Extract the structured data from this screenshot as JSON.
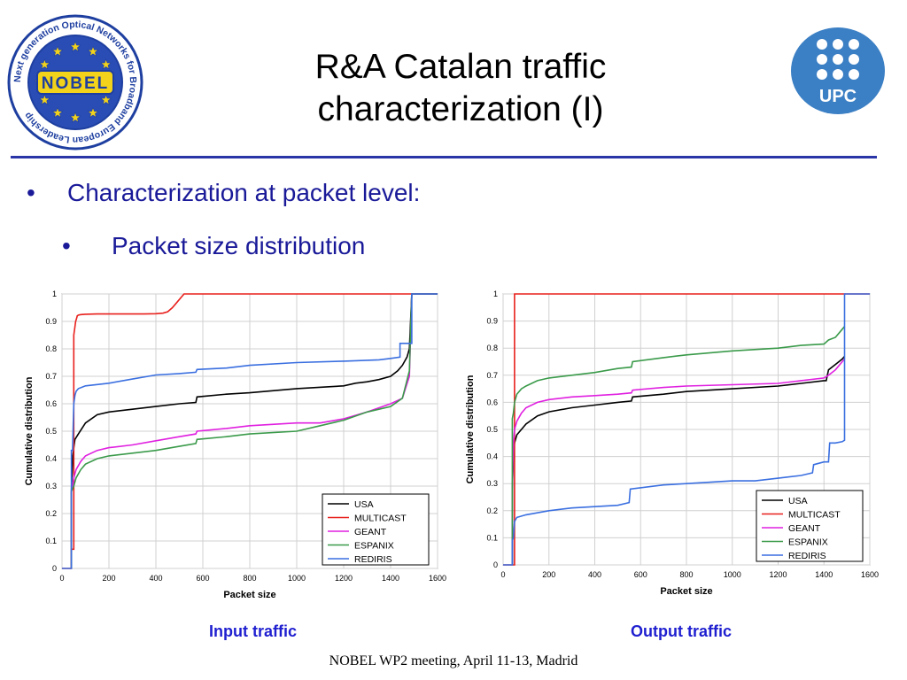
{
  "slide": {
    "title_line1": "R&A Catalan traffic",
    "title_line2": "characterization (I)",
    "bullet1": "Characterization at packet level:",
    "bullet2": "Packet size distribution",
    "bullet_symbol": "•",
    "caption_left": "Input traffic",
    "caption_right": "Output traffic",
    "footer": "NOBEL WP2 meeting, April 11-13, Madrid"
  },
  "logos": {
    "left_ring_text": "Next generation Optical Networks for Broadband European Leadership",
    "left_center_text": "NOBEL",
    "right_text": "UPC"
  },
  "colors": {
    "rule": "#2a35a8",
    "bullet_text": "#1a1a99",
    "caption": "#1f1fd0",
    "upc_blue": "#3b7fc4",
    "nobel_ring": "#1e3fa0",
    "nobel_star": "#f2d21b"
  },
  "chart_data": [
    {
      "type": "line",
      "xlabel": "Packet size",
      "ylabel": "Cumulative distribution",
      "xlim": [
        0,
        1600
      ],
      "ylim": [
        0,
        1
      ],
      "xticks": [
        "0",
        "200",
        "400",
        "600",
        "800",
        "1000",
        "1200",
        "1400",
        "1600"
      ],
      "yticks": [
        "0",
        "0.1",
        "0.2",
        "0.3",
        "0.4",
        "0.5",
        "0.6",
        "0.7",
        "0.8",
        "0.9",
        "1"
      ],
      "grid": true,
      "legend": "bottom-right",
      "series": [
        {
          "name": "USA",
          "color": "#000000",
          "x": [
            40,
            40,
            45,
            50,
            55,
            70,
            100,
            150,
            200,
            300,
            400,
            500,
            570,
            575,
            700,
            800,
            1000,
            1200,
            1250,
            1300,
            1350,
            1400,
            1430,
            1450,
            1470,
            1480,
            1490,
            1500,
            1600
          ],
          "y": [
            0,
            0.28,
            0.4,
            0.44,
            0.47,
            0.49,
            0.53,
            0.56,
            0.57,
            0.58,
            0.59,
            0.6,
            0.605,
            0.625,
            0.635,
            0.64,
            0.655,
            0.665,
            0.675,
            0.68,
            0.688,
            0.7,
            0.72,
            0.74,
            0.77,
            0.8,
            1.0,
            1.0,
            1.0
          ]
        },
        {
          "name": "MULTICAST",
          "color": "#e8201c",
          "x": [
            0,
            40,
            40,
            50,
            50,
            55,
            58,
            62,
            65,
            70,
            80,
            100,
            150,
            200,
            250,
            300,
            350,
            400,
            430,
            450,
            470,
            490,
            510,
            520,
            530,
            540,
            600,
            1000,
            1600
          ],
          "y": [
            0,
            0,
            0.07,
            0.07,
            0.85,
            0.88,
            0.9,
            0.91,
            0.92,
            0.923,
            0.925,
            0.926,
            0.927,
            0.927,
            0.927,
            0.927,
            0.927,
            0.928,
            0.93,
            0.935,
            0.95,
            0.97,
            0.99,
            1.0,
            1.0,
            1.0,
            1.0,
            1.0,
            1.0
          ]
        },
        {
          "name": "GEANT",
          "color": "#e020e0",
          "x": [
            40,
            40,
            45,
            50,
            60,
            80,
            100,
            150,
            200,
            300,
            400,
            500,
            570,
            575,
            700,
            800,
            1000,
            1100,
            1200,
            1300,
            1400,
            1450,
            1480,
            1490,
            1600
          ],
          "y": [
            0,
            0.28,
            0.3,
            0.33,
            0.36,
            0.39,
            0.41,
            0.43,
            0.44,
            0.45,
            0.465,
            0.48,
            0.49,
            0.5,
            0.51,
            0.52,
            0.53,
            0.53,
            0.545,
            0.57,
            0.6,
            0.62,
            0.7,
            1.0,
            1.0
          ]
        },
        {
          "name": "ESPANIX",
          "color": "#3a9a4a",
          "x": [
            40,
            40,
            45,
            50,
            60,
            80,
            100,
            150,
            200,
            300,
            400,
            500,
            570,
            575,
            700,
            800,
            1000,
            1100,
            1200,
            1300,
            1400,
            1450,
            1480,
            1490,
            1600
          ],
          "y": [
            0,
            0.28,
            0.29,
            0.3,
            0.33,
            0.36,
            0.38,
            0.4,
            0.41,
            0.42,
            0.43,
            0.445,
            0.455,
            0.47,
            0.48,
            0.49,
            0.5,
            0.52,
            0.54,
            0.57,
            0.59,
            0.62,
            0.72,
            1.0,
            1.0
          ]
        },
        {
          "name": "REDIRIS",
          "color": "#3a6fe0",
          "x": [
            0,
            40,
            40,
            45,
            50,
            55,
            60,
            70,
            100,
            150,
            200,
            300,
            400,
            500,
            570,
            575,
            700,
            800,
            1000,
            1200,
            1350,
            1400,
            1440,
            1440,
            1470,
            1490,
            1490,
            1600
          ],
          "y": [
            0,
            0,
            0.43,
            0.43,
            0.6,
            0.63,
            0.645,
            0.655,
            0.665,
            0.67,
            0.675,
            0.69,
            0.705,
            0.71,
            0.715,
            0.725,
            0.73,
            0.74,
            0.75,
            0.755,
            0.76,
            0.765,
            0.77,
            0.82,
            0.82,
            0.82,
            1.0,
            1.0
          ]
        }
      ]
    },
    {
      "type": "line",
      "xlabel": "Packet size",
      "ylabel": "Cumulative distribution",
      "xlim": [
        0,
        1600
      ],
      "ylim": [
        0,
        1
      ],
      "xticks": [
        "0",
        "200",
        "400",
        "600",
        "800",
        "1000",
        "1200",
        "1400",
        "1600"
      ],
      "yticks": [
        "0",
        "0.1",
        "0.2",
        "0.3",
        "0.4",
        "0.5",
        "0.6",
        "0.7",
        "0.8",
        "0.9",
        "1"
      ],
      "grid": true,
      "legend": "bottom-right",
      "series": [
        {
          "name": "USA",
          "color": "#000000",
          "x": [
            40,
            40,
            45,
            50,
            60,
            80,
            100,
            150,
            200,
            300,
            400,
            500,
            560,
            565,
            700,
            800,
            1000,
            1200,
            1300,
            1400,
            1410,
            1420,
            1450,
            1480,
            1490
          ],
          "y": [
            0,
            0.28,
            0.4,
            0.45,
            0.48,
            0.5,
            0.52,
            0.55,
            0.565,
            0.58,
            0.59,
            0.6,
            0.605,
            0.62,
            0.63,
            0.64,
            0.65,
            0.66,
            0.67,
            0.68,
            0.68,
            0.72,
            0.74,
            0.76,
            0.77
          ]
        },
        {
          "name": "MULTICAST",
          "color": "#e8201c",
          "x": [
            0,
            50,
            50,
            1600
          ],
          "y": [
            0,
            0,
            1.0,
            1.0
          ]
        },
        {
          "name": "GEANT",
          "color": "#e020e0",
          "x": [
            40,
            40,
            45,
            50,
            60,
            80,
            100,
            150,
            200,
            300,
            400,
            500,
            560,
            565,
            700,
            800,
            1000,
            1200,
            1300,
            1400,
            1420,
            1450,
            1490
          ],
          "y": [
            0,
            0.28,
            0.45,
            0.5,
            0.53,
            0.56,
            0.58,
            0.6,
            0.61,
            0.62,
            0.625,
            0.63,
            0.635,
            0.645,
            0.655,
            0.66,
            0.665,
            0.67,
            0.68,
            0.69,
            0.7,
            0.72,
            0.76
          ]
        },
        {
          "name": "ESPANIX",
          "color": "#3a9a4a",
          "x": [
            40,
            40,
            45,
            50,
            60,
            80,
            100,
            150,
            200,
            300,
            400,
            500,
            560,
            565,
            700,
            800,
            1000,
            1200,
            1300,
            1400,
            1420,
            1450,
            1470,
            1490
          ],
          "y": [
            0,
            0.54,
            0.56,
            0.6,
            0.63,
            0.65,
            0.66,
            0.68,
            0.69,
            0.7,
            0.71,
            0.725,
            0.73,
            0.75,
            0.765,
            0.775,
            0.79,
            0.8,
            0.81,
            0.815,
            0.83,
            0.84,
            0.86,
            0.88
          ]
        },
        {
          "name": "REDIRIS",
          "color": "#3a6fe0",
          "x": [
            0,
            40,
            40,
            45,
            50,
            60,
            100,
            200,
            300,
            400,
            500,
            550,
            555,
            700,
            800,
            1000,
            1100,
            1200,
            1300,
            1350,
            1355,
            1400,
            1420,
            1425,
            1450,
            1480,
            1490,
            1490,
            1600
          ],
          "y": [
            0,
            0,
            0.09,
            0.1,
            0.16,
            0.175,
            0.185,
            0.2,
            0.21,
            0.215,
            0.22,
            0.23,
            0.28,
            0.295,
            0.3,
            0.31,
            0.31,
            0.32,
            0.33,
            0.34,
            0.37,
            0.38,
            0.38,
            0.45,
            0.45,
            0.455,
            0.46,
            1.0,
            1.0
          ]
        }
      ]
    }
  ]
}
